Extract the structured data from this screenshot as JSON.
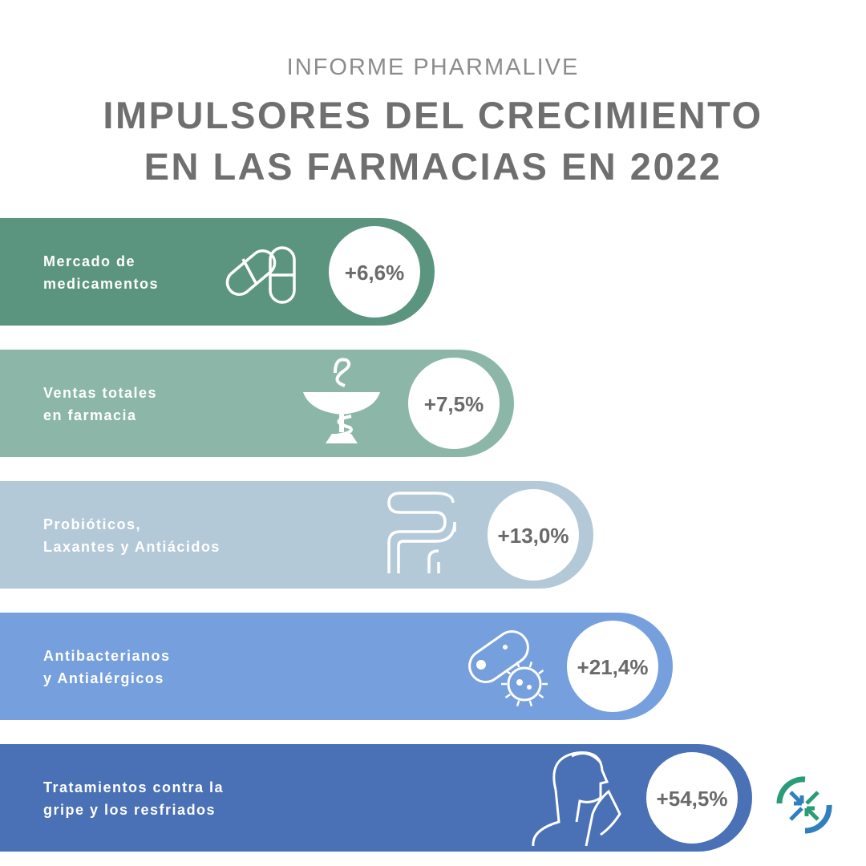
{
  "header": {
    "supertitle": "INFORME PHARMALIVE",
    "title_line1": "IMPULSORES DEL CRECIMIENTO",
    "title_line2": "EN LAS FARMACIAS EN 2022"
  },
  "chart_data": {
    "type": "bar",
    "orientation": "horizontal",
    "title": "IMPULSORES DEL CRECIMIENTO EN LAS FARMACIAS EN 2022",
    "unit": "%",
    "categories": [
      [
        "Mercado de",
        "medicamentos"
      ],
      [
        "Ventas totales",
        "en farmacia"
      ],
      [
        "Probióticos,",
        "Laxantes y Antiácidos"
      ],
      [
        "Antibacterianos",
        "y Antialérgicos"
      ],
      [
        "Tratamientos contra la",
        "gripe y los resfriados"
      ]
    ],
    "values": [
      6.6,
      7.5,
      13.0,
      21.4,
      54.5
    ],
    "value_labels": [
      "+6,6%",
      "+7,5%",
      "+13,0%",
      "+21,4%",
      "+54,5%"
    ],
    "icons": [
      "pills-icon",
      "pharmacy-bowl-icon",
      "intestine-icon",
      "bacteria-icon",
      "sneeze-icon"
    ],
    "colors": [
      "#5b9580",
      "#8cb7a8",
      "#b4c9d8",
      "#769fdd",
      "#4a70b5"
    ],
    "label_text_color": "#ffffff",
    "value_text_color": "#6a6a6a"
  },
  "logo": {
    "colors": [
      "#2a9d78",
      "#2f7fc1"
    ]
  }
}
